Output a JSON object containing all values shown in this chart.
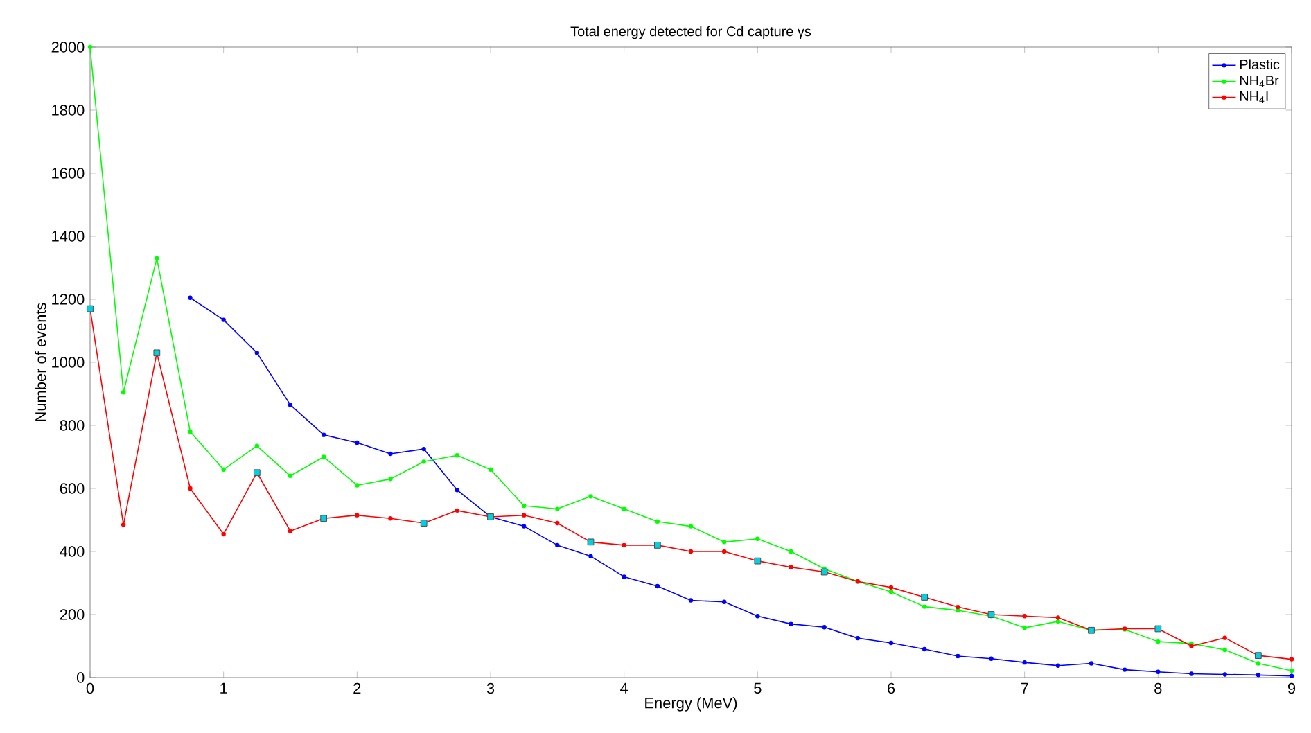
{
  "chart_data": {
    "type": "line",
    "title": "Total energy detected for Cd capture γs",
    "xlabel": "Energy (MeV)",
    "ylabel": "Number of events",
    "x": [
      0,
      0.25,
      0.5,
      0.75,
      1,
      1.25,
      1.5,
      1.75,
      2,
      2.25,
      2.5,
      2.75,
      3,
      3.25,
      3.5,
      3.75,
      4,
      4.25,
      4.5,
      4.75,
      5,
      5.25,
      5.5,
      5.75,
      6,
      6.25,
      6.5,
      6.75,
      7,
      7.25,
      7.5,
      7.75,
      8,
      8.25,
      8.5,
      8.75,
      9
    ],
    "series": [
      {
        "name": "Plastic",
        "color": "#0000ff",
        "values": [
          null,
          null,
          null,
          1205,
          1135,
          1030,
          865,
          770,
          745,
          710,
          725,
          595,
          510,
          480,
          420,
          385,
          320,
          290,
          245,
          240,
          195,
          170,
          160,
          125,
          110,
          90,
          68,
          60,
          48,
          38,
          45,
          25,
          18,
          12,
          10,
          8,
          5
        ]
      },
      {
        "name": "NH$_{4}$Br",
        "color": "#00ff00",
        "values": [
          2000,
          905,
          1330,
          780,
          660,
          735,
          640,
          700,
          610,
          630,
          685,
          705,
          660,
          545,
          535,
          575,
          535,
          495,
          480,
          430,
          440,
          400,
          345,
          305,
          272,
          225,
          213,
          195,
          158,
          178,
          150,
          153,
          114,
          108,
          88,
          45,
          22
        ]
      },
      {
        "name": "NH$_{4}$I",
        "color": "#ff0000",
        "values": [
          1170,
          485,
          1030,
          600,
          455,
          650,
          465,
          505,
          515,
          505,
          490,
          530,
          510,
          515,
          490,
          430,
          420,
          420,
          400,
          400,
          370,
          350,
          335,
          305,
          286,
          255,
          224,
          200,
          195,
          190,
          150,
          155,
          155,
          100,
          126,
          70,
          58
        ]
      },
      {
        "type": "scatter",
        "color": "#00d0e0",
        "marker": "square",
        "x": [
          0,
          0.5,
          1.25,
          1.75,
          2.5,
          3,
          3.75,
          4.25,
          5,
          5.5,
          6.25,
          6.75,
          7.5,
          8,
          8.75
        ],
        "values": [
          1170,
          1030,
          650,
          505,
          490,
          510,
          430,
          420,
          370,
          335,
          255,
          200,
          150,
          155,
          70
        ]
      }
    ],
    "xlim": [
      0,
      9
    ],
    "ylim": [
      0,
      2000
    ],
    "xticks": [
      0,
      1,
      2,
      3,
      4,
      5,
      6,
      7,
      8,
      9
    ],
    "yticks": [
      0,
      200,
      400,
      600,
      800,
      1000,
      1200,
      1400,
      1600,
      1800,
      2000
    ],
    "legend": "top right",
    "marker": "circle",
    "grid": false
  }
}
